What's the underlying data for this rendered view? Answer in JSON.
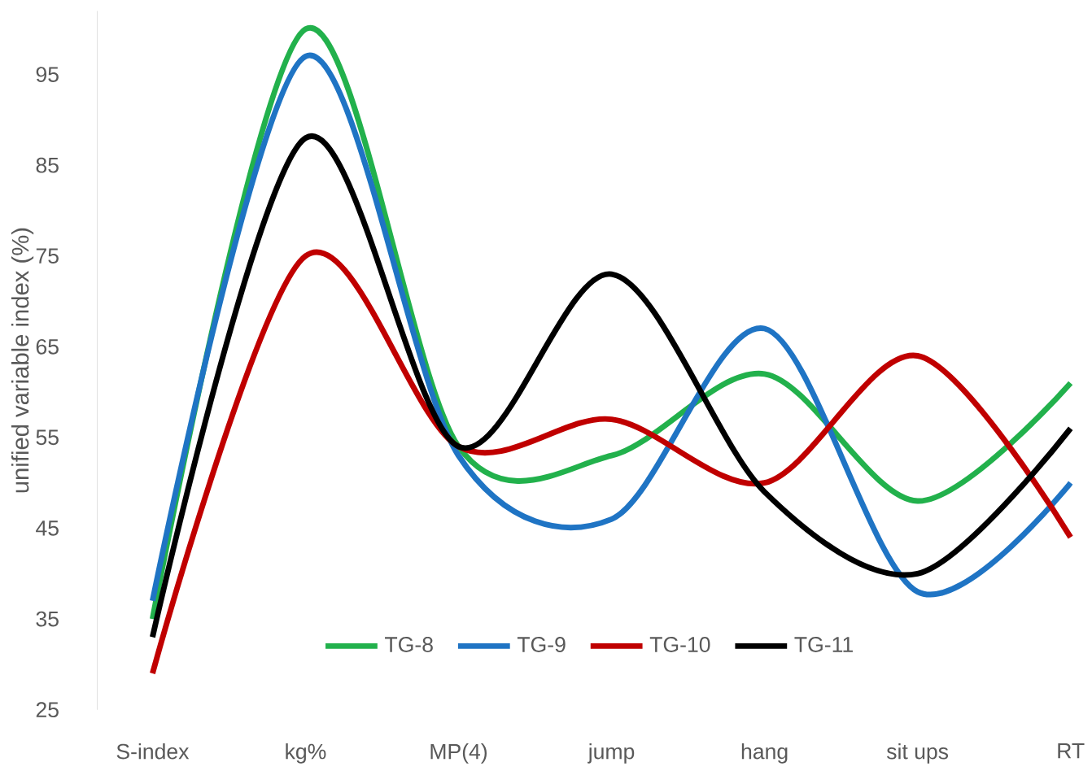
{
  "chart_data": {
    "type": "line",
    "ylabel": "unified variable index (%)",
    "categories": [
      "S-index",
      "kg%",
      "MP(4)",
      "jump",
      "hang",
      "sit ups",
      "RT"
    ],
    "series": [
      {
        "name": "TG-8",
        "color": "#22b14c",
        "values": [
          35,
          100,
          54,
          53,
          62,
          48,
          61
        ]
      },
      {
        "name": "TG-9",
        "color": "#1f74c4",
        "values": [
          37,
          97,
          53,
          46,
          67,
          38,
          50
        ]
      },
      {
        "name": "TG-10",
        "color": "#c00000",
        "values": [
          29,
          75,
          54,
          57,
          50,
          64,
          44
        ]
      },
      {
        "name": "TG-11",
        "color": "#000000",
        "values": [
          33,
          88,
          54,
          73,
          49,
          40,
          56
        ]
      }
    ],
    "ylim": [
      25,
      102
    ],
    "yticks": [
      25,
      35,
      45,
      55,
      65,
      75,
      85,
      95
    ],
    "grid": false,
    "legend": "bottom",
    "marker": "none",
    "line_style": "solid"
  }
}
